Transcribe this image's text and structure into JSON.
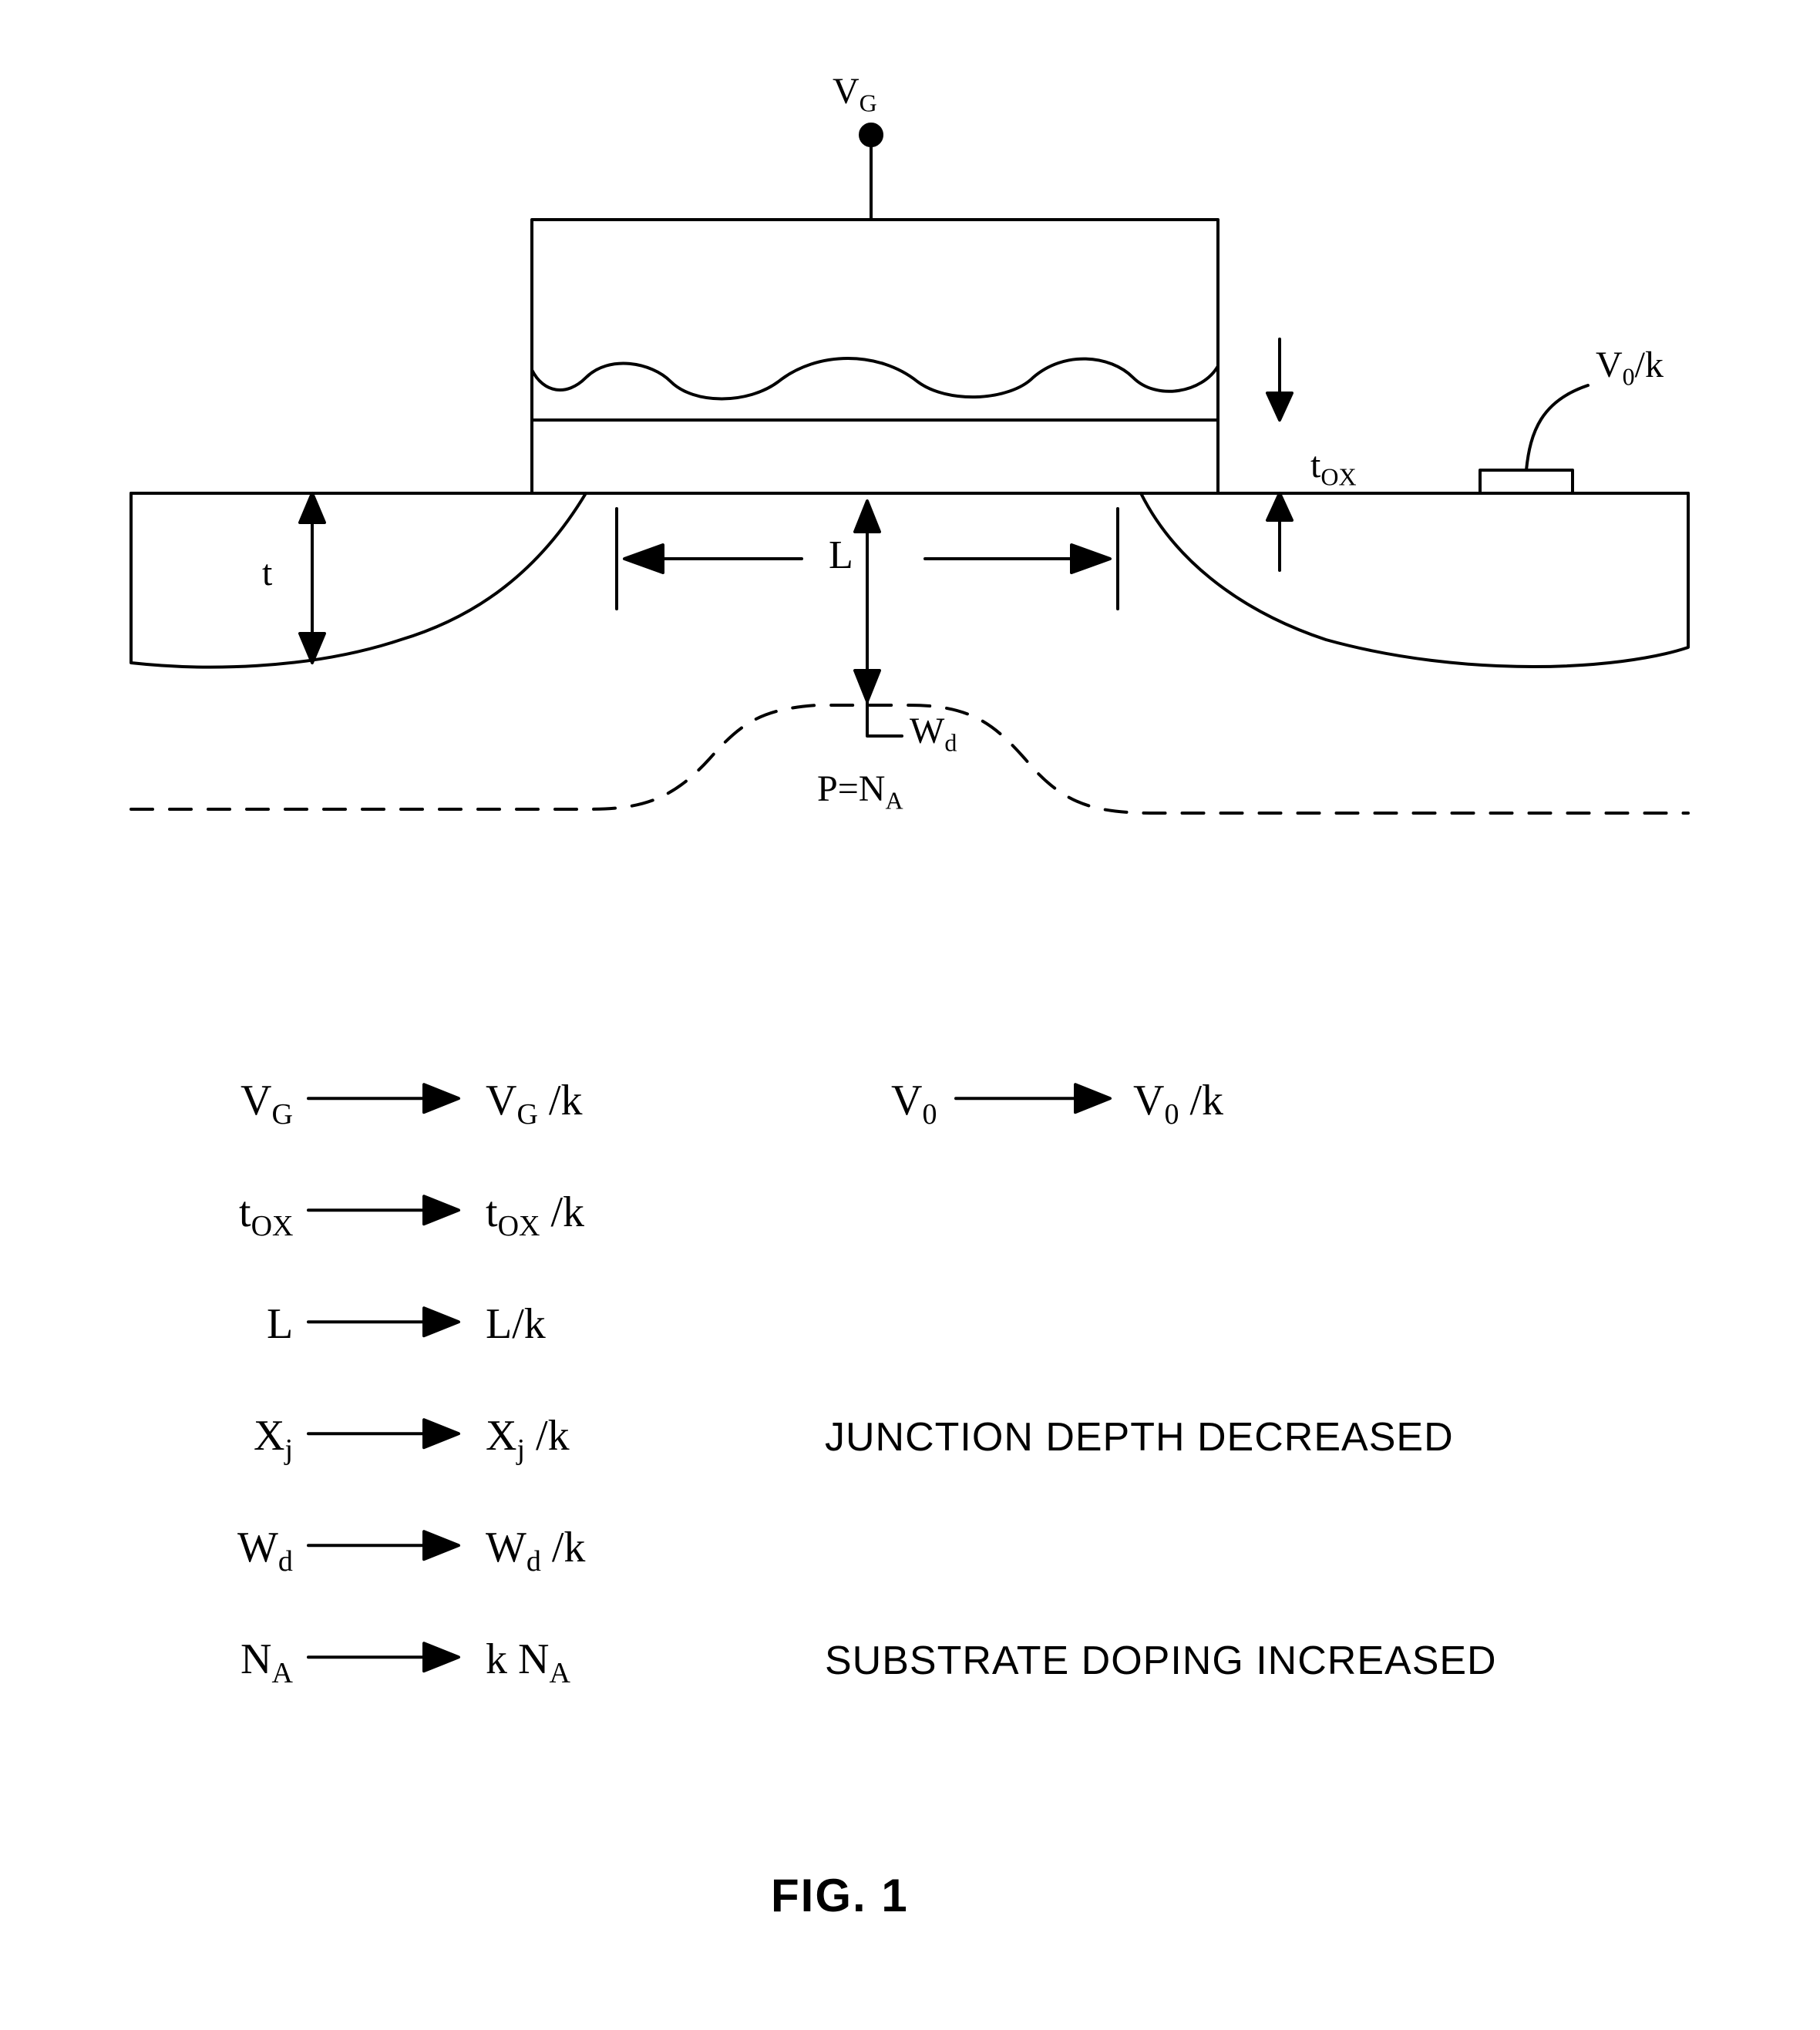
{
  "figure": {
    "title": "FIG.  1",
    "title_fontsize": 60,
    "title_weight": "bold",
    "colors": {
      "stroke": "#000000",
      "background": "#ffffff"
    },
    "stroke_width": 4,
    "stroke_width_thin": 3,
    "labels": {
      "vg": "V",
      "vg_sub": "G",
      "v0k": "V",
      "v0k_sub": "0",
      "v0k_suffix": "/k",
      "tox": "t",
      "tox_sub": "OX",
      "L": "L",
      "t": "t",
      "wd": "W",
      "wd_sub": "d",
      "pna": "P=N",
      "pna_sub": "A"
    },
    "diagram_fontsize": 48,
    "diagram_sub_fontsize": 32,
    "relations": {
      "row_fontsize": 56,
      "row_sub_fontsize": 38,
      "rows": [
        {
          "lhs": "V",
          "lhs_sub": "G",
          "rhs": "V",
          "rhs_sub": "G",
          "rhs_suffix": " /k",
          "note": ""
        },
        {
          "lhs": "t",
          "lhs_sub": "OX",
          "rhs": "t",
          "rhs_sub": "OX",
          "rhs_suffix": " /k",
          "note": ""
        },
        {
          "lhs": "L",
          "lhs_sub": "",
          "rhs": "L/k",
          "rhs_sub": "",
          "rhs_suffix": "",
          "note": ""
        },
        {
          "lhs": "X",
          "lhs_sub": "j",
          "rhs": "X",
          "rhs_sub": "j",
          "rhs_suffix": " /k",
          "note": "JUNCTION DEPTH DECREASED"
        },
        {
          "lhs": "W",
          "lhs_sub": "d",
          "rhs": "W",
          "rhs_sub": "d",
          "rhs_suffix": " /k",
          "note": ""
        },
        {
          "lhs": "N",
          "lhs_sub": "A",
          "rhs": "k N",
          "rhs_sub": "A",
          "rhs_suffix": "",
          "note": "SUBSTRATE DOPING INCREASED"
        }
      ],
      "side": {
        "lhs": "V",
        "lhs_sub": "0",
        "rhs": "V",
        "rhs_sub": "0",
        "rhs_suffix": " /k"
      }
    }
  }
}
